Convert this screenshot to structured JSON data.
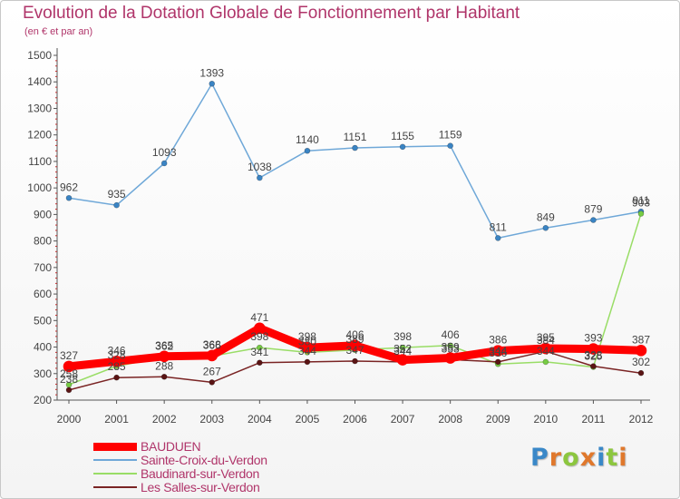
{
  "title": "Evolution de la Dotation Globale de Fonctionnement par Habitant",
  "subtitle": "(en € et par an)",
  "logo": {
    "text": "Proxiti",
    "colors": [
      "#3a88c8",
      "#e0782c",
      "#8cc63f",
      "#e0782c",
      "#3a88c8",
      "#8cc63f",
      "#e0782c"
    ]
  },
  "chart_data": {
    "type": "line",
    "title": "Evolution de la Dotation Globale de Fonctionnement par Habitant",
    "subtitle": "(en € et par an)",
    "xlabel": "",
    "ylabel": "",
    "x": [
      "2000",
      "2001",
      "2002",
      "2003",
      "2004",
      "2005",
      "2006",
      "2007",
      "2008",
      "2009",
      "2010",
      "2011",
      "2012"
    ],
    "ylim": [
      200,
      1500
    ],
    "yticks": [
      "200",
      "300",
      "400",
      "500",
      "600",
      "700",
      "800",
      "900",
      "1000",
      "1100",
      "1200",
      "1300",
      "1400",
      "1500"
    ],
    "grid": false,
    "legend": "bottom-left",
    "series": [
      {
        "name": "BAUDUEN",
        "color": "#ff0000",
        "values": [
          327,
          346,
          365,
          368,
          471,
          398,
          406,
          352,
          359,
          386,
          395,
          393,
          387
        ],
        "labels": [
          "327",
          "346",
          "365",
          "368",
          "471",
          "398",
          "406",
          "352",
          "359",
          "386",
          "395",
          "393",
          "387"
        ]
      },
      {
        "name": "Sainte-Croix-du-Verdon",
        "color": "#6fa8d8",
        "values": [
          962,
          935,
          1093,
          1393,
          1038,
          1140,
          1151,
          1155,
          1159,
          811,
          849,
          879,
          911
        ],
        "labels": [
          "962",
          "935",
          "1093",
          "1393",
          "1038",
          "1140",
          "1151",
          "1155",
          "1159",
          "811",
          "849",
          "879",
          "911"
        ]
      },
      {
        "name": "Baudinard-sur-Verdon",
        "color": "#99dd66",
        "values": [
          258,
          328,
          362,
          366,
          398,
          380,
          389,
          398,
          406,
          336,
          344,
          325,
          903
        ],
        "labels": [
          "258",
          "328",
          "362",
          "366",
          "398",
          "380",
          "389",
          "398",
          "406",
          "336",
          "344",
          "325",
          "903"
        ]
      },
      {
        "name": "Les Salles-sur-Verdon",
        "color": "#7a2424",
        "values": [
          238,
          285,
          288,
          267,
          341,
          344,
          347,
          344,
          353,
          344,
          384,
          328,
          302
        ],
        "labels": [
          "238",
          "285",
          "288",
          "267",
          "341",
          "344",
          "347",
          "344",
          "353",
          "344",
          "384",
          "328",
          "302"
        ]
      }
    ]
  }
}
